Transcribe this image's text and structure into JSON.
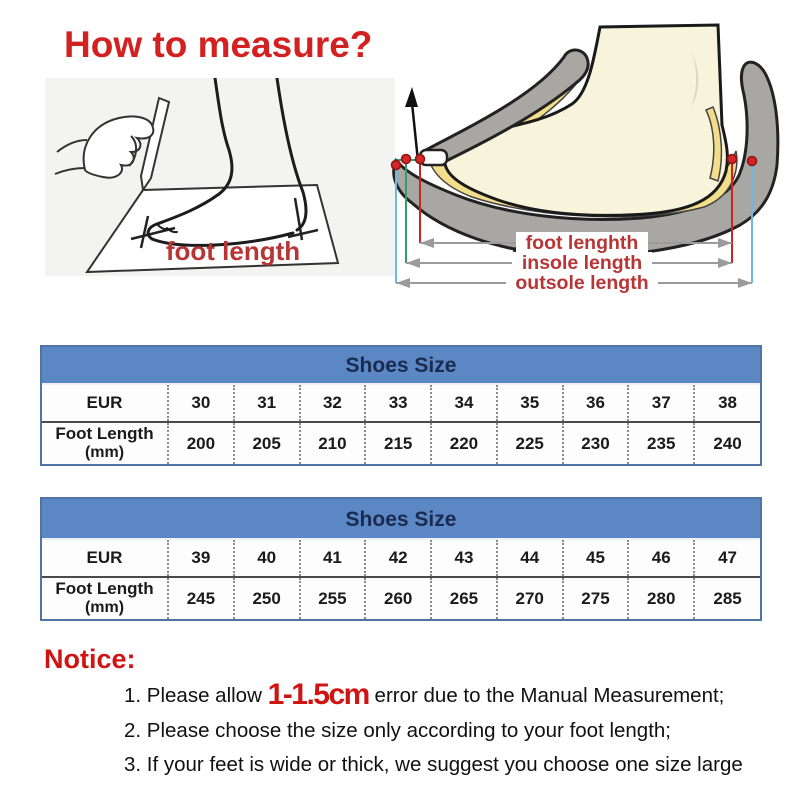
{
  "page": {
    "title": "How to measure?"
  },
  "colors": {
    "accent_red": "#d32121",
    "notice_red": "#cf1414",
    "diagram_label_red": "#b83535",
    "table_header_bg": "#5b87c5",
    "table_header_text": "#1b2b50",
    "table_border_blue": "#4f74a3"
  },
  "trace_diagram": {
    "label": "foot length"
  },
  "shoe_diagram": {
    "foot_label": "foot lenghth",
    "insole_label": "insole length",
    "outsole_label": "outsole length"
  },
  "tables": [
    {
      "title": "Shoes Size",
      "row1_label": "EUR",
      "row2_label_line1": "Foot Length",
      "row2_label_line2": "(mm)",
      "sizes": [
        "30",
        "31",
        "32",
        "33",
        "34",
        "35",
        "36",
        "37",
        "38"
      ],
      "foot_lengths": [
        "200",
        "205",
        "210",
        "215",
        "220",
        "225",
        "230",
        "235",
        "240"
      ]
    },
    {
      "title": "Shoes Size",
      "row1_label": "EUR",
      "row2_label_line1": "Foot Length",
      "row2_label_line2": "(mm)",
      "sizes": [
        "39",
        "40",
        "41",
        "42",
        "43",
        "44",
        "45",
        "46",
        "47"
      ],
      "foot_lengths": [
        "245",
        "250",
        "255",
        "260",
        "265",
        "270",
        "275",
        "280",
        "285"
      ]
    }
  ],
  "notice": {
    "title": "Notice:",
    "items": [
      {
        "prefix": "1. Please allow ",
        "highlight": "1-1.5cm",
        "suffix": " error due to the Manual Measurement;"
      },
      {
        "text": "2. Please choose the size only according to your foot length;"
      },
      {
        "text": "3. If your feet is wide or thick, we suggest you choose one size large"
      }
    ]
  }
}
